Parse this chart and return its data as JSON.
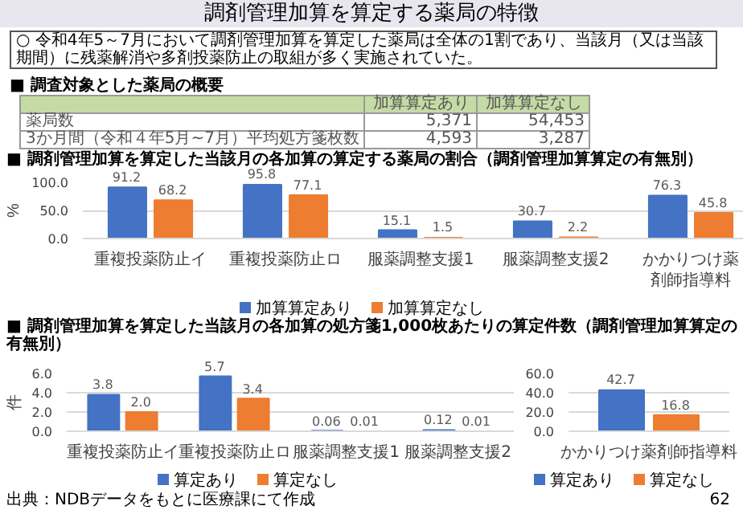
{
  "chart_data": [
    {
      "type": "other",
      "title": "調剤管理加算を算定する薬局の特徴",
      "subtitle": "○ 令和4年5～7月において調剤管理加算を算定した薬局は全体の1割であり、当該月（又は当該期間）に残薬解消や多剤投薬防止の取組が多く実施されていた。",
      "annotations": [
        "■ 調査対象とした薬局の概要",
        "加算算定あり",
        "加算算定なし",
        "薬局数",
        "5,371",
        "54,453",
        "3か月間（令和４年5月~7月）平均処方箋枚数",
        "4,593",
        "3,287"
      ]
    },
    {
      "type": "bar",
      "title": "■ 調剤管理加算を算定した当該月の各加算の算定する薬局の割合（調剤管理加算算定の有無別）",
      "ylabel": "%",
      "categories": [
        "重複投薬防止イ",
        "重複投薬防止ロ",
        "服薬調整支援1",
        "服薬調整支援2",
        "かかりつけ薬剤師指導料"
      ],
      "series": [
        {
          "name": "加算算定あり",
          "color": "#4472c4",
          "values": [
            91.2,
            95.8,
            15.1,
            30.7,
            76.3
          ]
        },
        {
          "name": "加算算定なし",
          "color": "#ed7d31",
          "values": [
            68.2,
            77.1,
            1.5,
            2.2,
            45.8
          ]
        }
      ],
      "ylim": [
        0,
        100
      ],
      "yticks": [
        {
          "value": 0,
          "label": "0.0"
        },
        {
          "value": 50,
          "label": "50.0"
        },
        {
          "value": 100,
          "label": "100.0"
        }
      ],
      "grid": "y",
      "legend": "bottom",
      "data_labels": true
    },
    {
      "type": "bar",
      "title": "■ 調剤管理加算を算定した当該月の各加算の処方箋1,000枚あたりの算定件数（調剤管理加算算定の有無別）",
      "ylabel": "件",
      "categories": [
        "重複投薬防止イ",
        "重複投薬防止ロ",
        "服薬調整支援1",
        "服薬調整支援2"
      ],
      "series": [
        {
          "name": "算定あり",
          "color": "#4472c4",
          "values": [
            3.8,
            5.7,
            0.06,
            0.12
          ]
        },
        {
          "name": "算定なし",
          "color": "#ed7d31",
          "values": [
            2.0,
            3.4,
            0.01,
            0.01
          ],
          "value_labels": [
            "2.0",
            "3.4",
            "0.01",
            "0.01"
          ]
        }
      ],
      "ylim": [
        0,
        6
      ],
      "yticks": [
        {
          "value": 0,
          "label": "0.0"
        },
        {
          "value": 2,
          "label": "2.0"
        },
        {
          "value": 4,
          "label": "4.0"
        },
        {
          "value": 6,
          "label": "6.0"
        }
      ],
      "grid": "y",
      "legend": "bottom",
      "data_labels": true
    },
    {
      "type": "bar",
      "categories": [
        "かかりつけ薬剤師指導料"
      ],
      "series": [
        {
          "name": "算定あり",
          "color": "#4472c4",
          "values": [
            42.7
          ]
        },
        {
          "name": "算定なし",
          "color": "#ed7d31",
          "values": [
            16.8
          ]
        }
      ],
      "ylim": [
        0,
        60
      ],
      "yticks": [
        {
          "value": 0,
          "label": "0.0"
        },
        {
          "value": 20,
          "label": "20.0"
        },
        {
          "value": 40,
          "label": "40.0"
        },
        {
          "value": 60,
          "label": "60.0"
        }
      ],
      "grid": "y",
      "legend": "bottom",
      "data_labels": true,
      "annotations": [
        "出典：NDBデータをもとに医療課にて作成",
        "62"
      ]
    }
  ]
}
